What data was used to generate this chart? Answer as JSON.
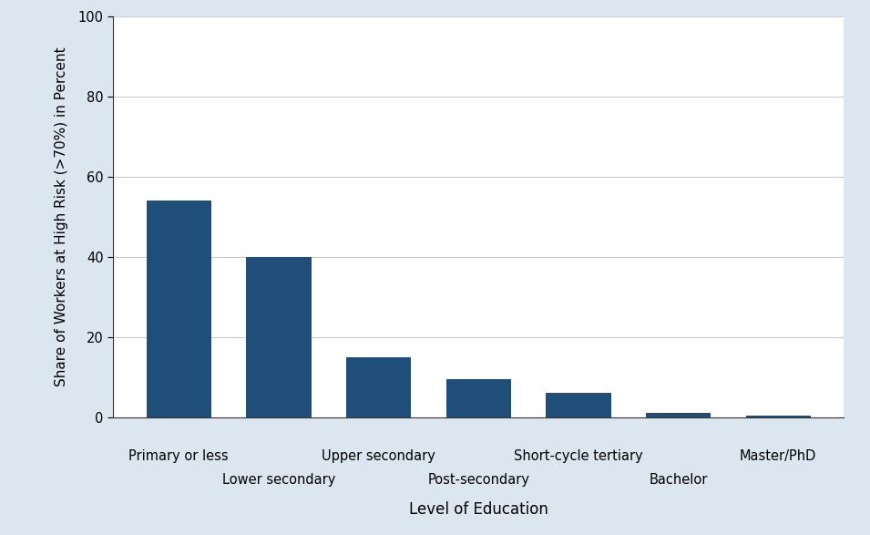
{
  "categories": [
    "Primary or less",
    "Lower secondary",
    "Upper secondary",
    "Post-secondary",
    "Short-cycle tertiary",
    "Bachelor",
    "Master/PhD"
  ],
  "values": [
    54,
    40,
    15,
    9.5,
    6,
    1.2,
    0.4
  ],
  "bar_color": "#1f4e79",
  "ylabel": "Share of Workers at High Risk (>70%) in Percent",
  "xlabel": "Level of Education",
  "ylim": [
    0,
    100
  ],
  "yticks": [
    0,
    20,
    40,
    60,
    80,
    100
  ],
  "background_color": "#dce6f0",
  "plot_background_color": "#ffffff",
  "grid_color": "#cccccc",
  "bar_width": 0.65,
  "tick_label_fontsize": 10.5,
  "axis_label_fontsize": 12,
  "ylabel_fontsize": 11
}
